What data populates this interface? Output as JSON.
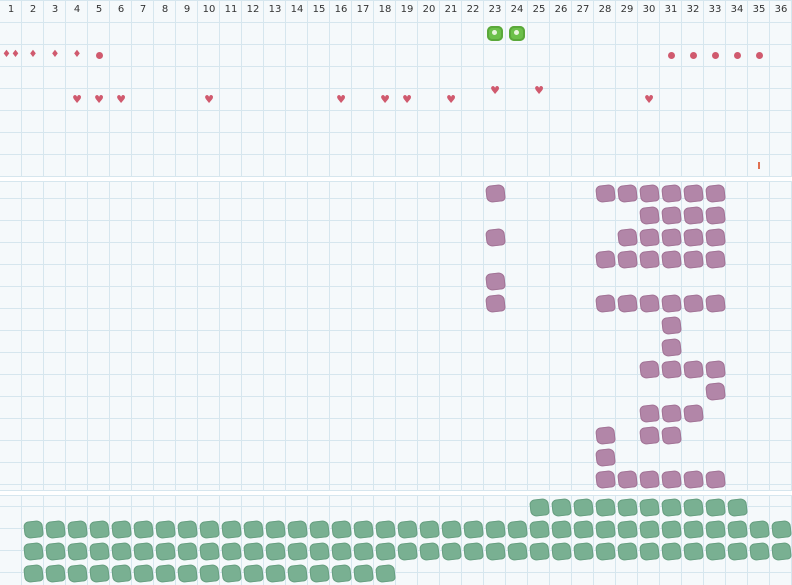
{
  "columns": [
    "1",
    "2",
    "3",
    "4",
    "5",
    "6",
    "7",
    "8",
    "9",
    "10",
    "11",
    "12",
    "13",
    "14",
    "15",
    "16",
    "17",
    "18",
    "19",
    "20",
    "21",
    "22",
    "23",
    "24",
    "25",
    "26",
    "27",
    "28",
    "29",
    "30",
    "31",
    "32",
    "33",
    "34",
    "35",
    "36"
  ],
  "colors": {
    "marker_red": "#d05a6e",
    "sprout_green": "#6cc04a",
    "blob_purple": "#b286a8",
    "blob_green": "#79b092",
    "grid_line": "#d6e6ee",
    "background": "#f5f9fb"
  },
  "markers": [
    {
      "icon": "sprout-icon",
      "col": 23,
      "row": 1
    },
    {
      "icon": "sprout-icon",
      "col": 24,
      "row": 1
    },
    {
      "icon": "double-drop-icon",
      "col": 1,
      "row": 2
    },
    {
      "icon": "drop-icon",
      "col": 2,
      "row": 2
    },
    {
      "icon": "drop-icon",
      "col": 3,
      "row": 2
    },
    {
      "icon": "drop-icon",
      "col": 4,
      "row": 2
    },
    {
      "icon": "dot-icon",
      "col": 5,
      "row": 2
    },
    {
      "icon": "dot-icon",
      "col": 31,
      "row": 2
    },
    {
      "icon": "dot-icon",
      "col": 32,
      "row": 2
    },
    {
      "icon": "dot-icon",
      "col": 33,
      "row": 2
    },
    {
      "icon": "dot-icon",
      "col": 34,
      "row": 2
    },
    {
      "icon": "dot-icon",
      "col": 35,
      "row": 2
    },
    {
      "icon": "heart-icon",
      "col": 4,
      "row": 4
    },
    {
      "icon": "heart-icon",
      "col": 5,
      "row": 4
    },
    {
      "icon": "heart-icon",
      "col": 6,
      "row": 4
    },
    {
      "icon": "heart-icon",
      "col": 10,
      "row": 4
    },
    {
      "icon": "heart-icon",
      "col": 16,
      "row": 4
    },
    {
      "icon": "heart-icon",
      "col": 18,
      "row": 4
    },
    {
      "icon": "heart-icon",
      "col": 19,
      "row": 4
    },
    {
      "icon": "heart-icon",
      "col": 21,
      "row": 4
    },
    {
      "icon": "heart-icon",
      "col": 23,
      "row": 3.6
    },
    {
      "icon": "heart-icon",
      "col": 25,
      "row": 3.6
    },
    {
      "icon": "heart-icon",
      "col": 30,
      "row": 4
    },
    {
      "icon": "tick-icon",
      "col": 35,
      "row": 7
    }
  ],
  "purple_rows": [
    [
      23,
      28,
      29,
      30,
      31,
      32,
      33
    ],
    [
      30,
      31,
      32,
      33
    ],
    [
      23,
      29,
      30,
      31,
      32,
      33
    ],
    [
      28,
      29,
      30,
      31,
      32,
      33
    ],
    [
      23
    ],
    [
      23,
      28,
      29,
      30,
      31,
      32,
      33
    ],
    [
      31
    ],
    [
      31
    ],
    [
      30,
      31,
      32,
      33
    ],
    [
      33
    ],
    [
      30,
      31,
      32
    ],
    [
      28,
      30,
      31
    ],
    [
      28
    ],
    [
      28,
      29,
      30,
      31,
      32,
      33
    ]
  ],
  "green_rows": [
    {
      "from": 25,
      "to": 34
    },
    {
      "from": 2,
      "to": 36
    },
    {
      "from": 2,
      "to": 36
    },
    {
      "from": 2,
      "to": 18
    }
  ]
}
